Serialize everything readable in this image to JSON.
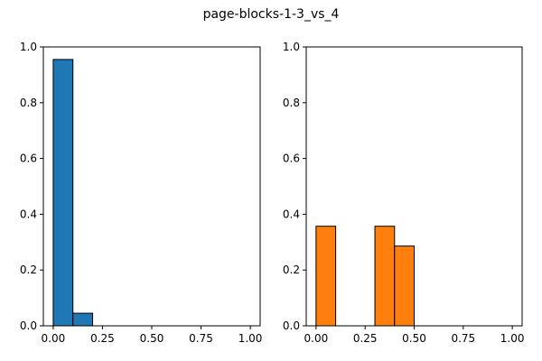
{
  "title": "page-blocks-1-3_vs_4",
  "chart_data": [
    {
      "type": "histogram",
      "color": "#1f77b4",
      "bins": [
        0,
        0.1,
        0.2,
        0.3,
        0.4,
        0.5,
        0.6,
        0.7,
        0.8,
        0.9,
        1.0
      ],
      "values": [
        0.955,
        0.045,
        0,
        0,
        0,
        0,
        0,
        0,
        0,
        0
      ],
      "xlim": [
        -0.05,
        1.05
      ],
      "ylim": [
        0,
        1
      ],
      "xticks": [
        {
          "value": 0,
          "label": "0.00"
        },
        {
          "value": 0.25,
          "label": "0.25"
        },
        {
          "value": 0.5,
          "label": "0.50"
        },
        {
          "value": 0.75,
          "label": "0.75"
        },
        {
          "value": 1,
          "label": "1.00"
        }
      ],
      "yticks": [
        {
          "value": 0,
          "label": "0.0"
        },
        0.2,
        0.4,
        0.6,
        0.8,
        {
          "value": 1,
          "label": "1.0"
        }
      ]
    },
    {
      "type": "histogram",
      "color": "#ff7f0e",
      "bins": [
        0,
        0.1,
        0.2,
        0.3,
        0.4,
        0.5,
        0.6,
        0.7,
        0.8,
        0.9,
        1.0
      ],
      "values": [
        0.357,
        0,
        0,
        0.357,
        0.286,
        0,
        0,
        0,
        0,
        0
      ],
      "xlim": [
        -0.05,
        1.05
      ],
      "ylim": [
        0,
        1
      ],
      "xticks": [
        {
          "value": 0,
          "label": "0.00"
        },
        {
          "value": 0.25,
          "label": "0.25"
        },
        {
          "value": 0.5,
          "label": "0.50"
        },
        {
          "value": 0.75,
          "label": "0.75"
        },
        {
          "value": 1,
          "label": "1.00"
        }
      ],
      "yticks": [
        {
          "value": 0,
          "label": "0.0"
        },
        0.2,
        0.4,
        0.6,
        0.8,
        {
          "value": 1,
          "label": "1.0"
        }
      ]
    }
  ]
}
